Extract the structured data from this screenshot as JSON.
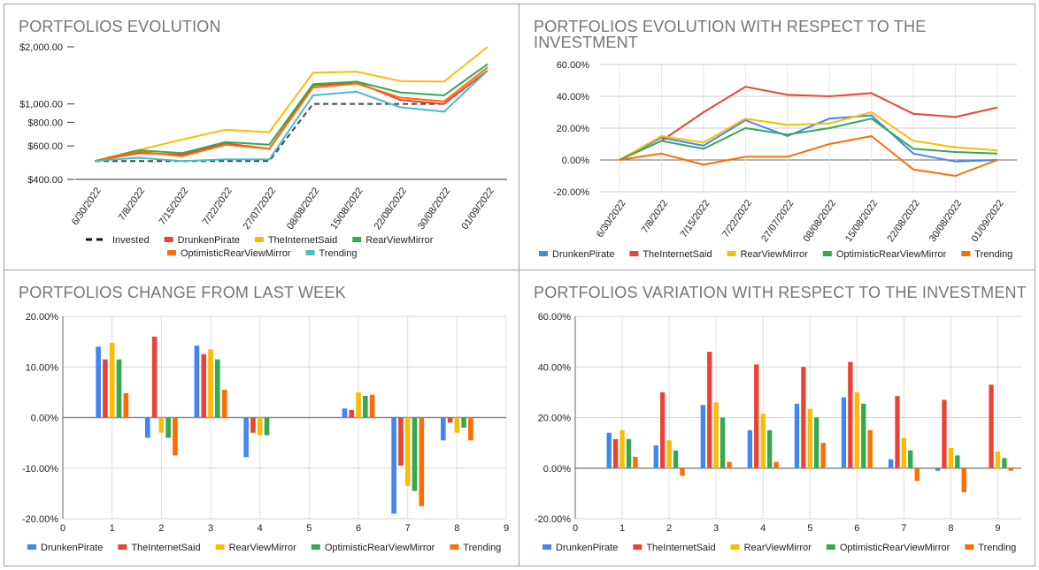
{
  "colors": {
    "invested": "#444444",
    "DrunkenPirate": "#ea4335",
    "TheInternetSaid": "#fbbc04",
    "RearViewMirror": "#34a853",
    "OptimisticRearViewMirror": "#ff6d01",
    "Trending": "#46bdc6",
    "blue": "#4285f4",
    "red": "#ea4335",
    "yellow": "#fbbc04",
    "green": "#34a853",
    "orange": "#ff6d01"
  },
  "chart_data": [
    {
      "type": "line",
      "title": "PORTFOLIOS EVOLUTION",
      "scale": "log",
      "ylim": [
        400,
        2000
      ],
      "yticks": [
        "$400.00",
        "$600.00",
        "$800.00",
        "$1,000.00",
        "$2,000.00"
      ],
      "ytick_values": [
        400,
        600,
        800,
        1000,
        2000
      ],
      "categories": [
        "6/30/2022",
        "7/8/2022",
        "7/15/2022",
        "7/22/2022",
        "27/07/2022",
        "08/08/2022",
        "15/08/2022",
        "22/08/2022",
        "30/08/2022",
        "01/09/2022"
      ],
      "series": [
        {
          "name": "Invested",
          "color_key": "invested",
          "dashed": true,
          "values": [
            500,
            500,
            500,
            500,
            500,
            1000,
            1000,
            1000,
            1000,
            1500
          ]
        },
        {
          "name": "DrunkenPirate",
          "color_key": "DrunkenPirate",
          "values": [
            500,
            550,
            540,
            620,
            580,
            1250,
            1300,
            1050,
            1000,
            1500
          ]
        },
        {
          "name": "TheInternetSaid",
          "color_key": "TheInternetSaid",
          "values": [
            500,
            570,
            650,
            730,
            710,
            1460,
            1480,
            1320,
            1310,
            2000
          ]
        },
        {
          "name": "RearViewMirror",
          "color_key": "RearViewMirror",
          "values": [
            500,
            570,
            550,
            630,
            610,
            1270,
            1310,
            1150,
            1110,
            1620
          ]
        },
        {
          "name": "OptimisticRearViewMirror",
          "color_key": "OptimisticRearViewMirror",
          "values": [
            500,
            560,
            530,
            610,
            580,
            1220,
            1280,
            1080,
            1030,
            1560
          ]
        },
        {
          "name": "Trending",
          "color_key": "Trending",
          "values": [
            500,
            520,
            500,
            510,
            510,
            1110,
            1160,
            960,
            910,
            1500
          ]
        }
      ],
      "legend": "bottom"
    },
    {
      "type": "line",
      "title": "PORTFOLIOS EVOLUTION WITH RESPECT TO THE INVESTMENT",
      "ylim": [
        -20,
        60
      ],
      "yticks": [
        "-20.00%",
        "0.00%",
        "20.00%",
        "40.00%",
        "60.00%"
      ],
      "ytick_values": [
        -20,
        0,
        20,
        40,
        60
      ],
      "categories": [
        "6/30/2022",
        "7/8/2022",
        "7/15/2022",
        "7/22/2022",
        "27/07/2022",
        "08/08/2022",
        "15/08/2022",
        "22/08/2022",
        "30/08/2022",
        "01/09/2022"
      ],
      "series": [
        {
          "name": "DrunkenPirate",
          "color_key": "blue",
          "values": [
            0,
            14,
            9,
            25,
            15,
            26,
            28,
            4,
            -1,
            0
          ]
        },
        {
          "name": "TheInternetSaid",
          "color_key": "red",
          "values": [
            0,
            12,
            30,
            46,
            41,
            40,
            42,
            29,
            27,
            33
          ]
        },
        {
          "name": "RearViewMirror",
          "color_key": "yellow",
          "values": [
            0,
            15,
            11,
            26,
            22,
            23,
            30,
            12,
            8,
            6
          ]
        },
        {
          "name": "OptimisticRearViewMirror",
          "color_key": "green",
          "values": [
            0,
            12,
            7,
            20,
            16,
            20,
            26,
            7,
            5,
            4
          ]
        },
        {
          "name": "Trending",
          "color_key": "orange",
          "values": [
            0,
            4,
            -3,
            2,
            2,
            10,
            15,
            -6,
            -10,
            0
          ]
        }
      ],
      "legend": "bottom"
    },
    {
      "type": "bar",
      "title": "PORTFOLIOS CHANGE FROM LAST WEEK",
      "ylim": [
        -20,
        20
      ],
      "yticks": [
        "-20.00%",
        "-10.00%",
        "0.00%",
        "10.00%",
        "20.00%"
      ],
      "ytick_values": [
        -20,
        -10,
        0,
        10,
        20
      ],
      "xlim": [
        0,
        9
      ],
      "xticks": [
        "0",
        "1",
        "2",
        "3",
        "4",
        "5",
        "6",
        "7",
        "8",
        "9"
      ],
      "categories": [
        1,
        2,
        3,
        4,
        5,
        6,
        7,
        8
      ],
      "series": [
        {
          "name": "DrunkenPirate",
          "color_key": "blue",
          "values": [
            14,
            -4,
            14.2,
            -7.8,
            0,
            1.8,
            -19,
            -4.5
          ]
        },
        {
          "name": "TheInternetSaid",
          "color_key": "red",
          "values": [
            11.5,
            16,
            12.5,
            -3,
            0,
            1.5,
            -9.5,
            -1
          ]
        },
        {
          "name": "RearViewMirror",
          "color_key": "yellow",
          "values": [
            14.8,
            -3,
            13.5,
            -3.5,
            0,
            5,
            -13.5,
            -3
          ]
        },
        {
          "name": "OptimisticRearViewMirror",
          "color_key": "green",
          "values": [
            11.5,
            -4,
            11.5,
            -3.5,
            0,
            4.3,
            -14.5,
            -2
          ]
        },
        {
          "name": "Trending",
          "color_key": "orange",
          "values": [
            4.8,
            -7.5,
            5.5,
            0,
            0,
            4.5,
            -17.5,
            -4.5
          ]
        }
      ],
      "legend": "bottom"
    },
    {
      "type": "bar",
      "title": "PORTFOLIOS VARIATION WITH RESPECT TO THE INVESTMENT",
      "ylim": [
        -20,
        60
      ],
      "yticks": [
        "-20.00%",
        "0.00%",
        "20.00%",
        "40.00%",
        "60.00%"
      ],
      "ytick_values": [
        -20,
        0,
        20,
        40,
        60
      ],
      "xlim": [
        0,
        9.5
      ],
      "xticks": [
        "0",
        "1",
        "2",
        "3",
        "4",
        "5",
        "6",
        "7",
        "8",
        "9"
      ],
      "categories": [
        1,
        2,
        3,
        4,
        5,
        6,
        7,
        8,
        9
      ],
      "series": [
        {
          "name": "DrunkenPirate",
          "color_key": "blue",
          "values": [
            14,
            9,
            25,
            15,
            25.5,
            28,
            3.5,
            -1,
            0
          ]
        },
        {
          "name": "TheInternetSaid",
          "color_key": "red",
          "values": [
            11.5,
            30,
            46,
            41,
            40,
            42,
            28.5,
            27,
            33
          ]
        },
        {
          "name": "RearViewMirror",
          "color_key": "yellow",
          "values": [
            15,
            11,
            26,
            21.5,
            23.5,
            30,
            12,
            8,
            6.5
          ]
        },
        {
          "name": "OptimisticRearViewMirror",
          "color_key": "green",
          "values": [
            11.5,
            7,
            20,
            15,
            20,
            25.5,
            7,
            5,
            4
          ]
        },
        {
          "name": "Trending",
          "color_key": "orange",
          "values": [
            4.5,
            -3,
            2.5,
            2.5,
            10,
            15,
            -5,
            -9.5,
            -1
          ]
        }
      ],
      "legend": "bottom"
    }
  ]
}
